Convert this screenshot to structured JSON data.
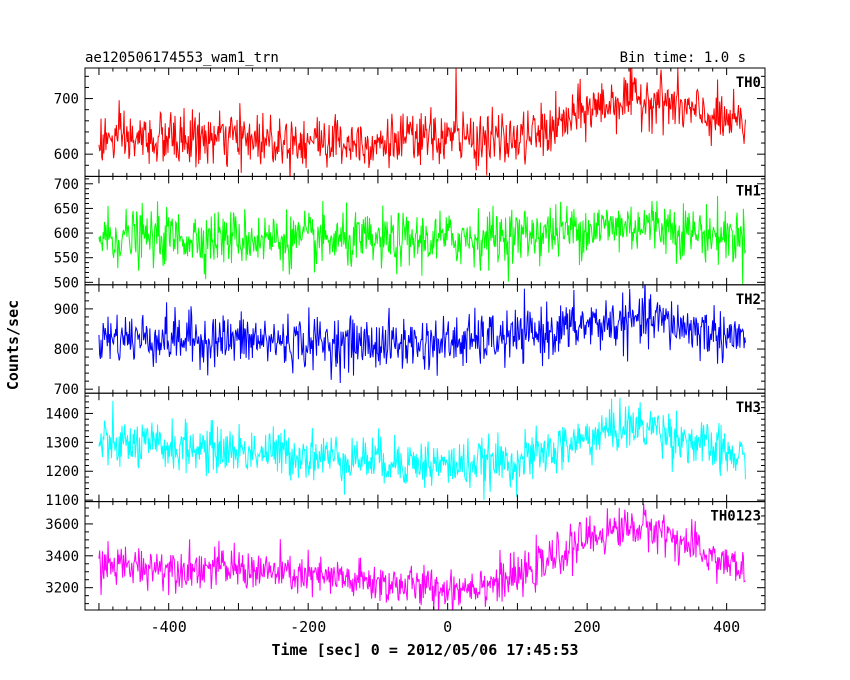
{
  "header": {
    "title": "ae120506174553_wam1_trn",
    "bin_time": "Bin time: 1.0 s"
  },
  "chart_data": {
    "type": "line",
    "title": "ae120506174553_wam1_trn",
    "subtitle": "Bin time: 1.0 s",
    "xlabel": "Time [sec] 0 = 2012/05/06 17:45:53",
    "ylabel": "Counts/sec",
    "xlim": [
      -520,
      455
    ],
    "x_ticks": [
      -400,
      -200,
      0,
      200,
      400
    ],
    "x_range": [
      -500,
      427
    ],
    "bin_seconds": 1.0,
    "grid": false,
    "panels": [
      {
        "name": "TH0",
        "color": "#ff0000",
        "ylim": [
          560,
          755
        ],
        "y_ticks": [
          600,
          700
        ],
        "profile": [
          [
            -500,
            625
          ],
          [
            -300,
            628
          ],
          [
            -100,
            622
          ],
          [
            0,
            630
          ],
          [
            100,
            625
          ],
          [
            150,
            645
          ],
          [
            200,
            680
          ],
          [
            250,
            698
          ],
          [
            300,
            700
          ],
          [
            350,
            675
          ],
          [
            427,
            650
          ]
        ],
        "noise_sd": 24,
        "spike": {
          "x": 12,
          "value": 760
        }
      },
      {
        "name": "TH1",
        "color": "#00ff00",
        "ylim": [
          495,
          715
        ],
        "y_ticks": [
          500,
          550,
          600,
          650,
          700
        ],
        "profile": [
          [
            -500,
            592
          ],
          [
            -300,
            590
          ],
          [
            -100,
            582
          ],
          [
            0,
            588
          ],
          [
            100,
            595
          ],
          [
            200,
            610
          ],
          [
            300,
            618
          ],
          [
            350,
            602
          ],
          [
            427,
            590
          ]
        ],
        "noise_sd": 28
      },
      {
        "name": "TH2",
        "color": "#0000ff",
        "ylim": [
          690,
          960
        ],
        "y_ticks": [
          700,
          800,
          900
        ],
        "profile": [
          [
            -500,
            830
          ],
          [
            -300,
            822
          ],
          [
            -100,
            812
          ],
          [
            0,
            815
          ],
          [
            100,
            830
          ],
          [
            200,
            860
          ],
          [
            300,
            872
          ],
          [
            350,
            850
          ],
          [
            427,
            825
          ]
        ],
        "noise_sd": 33
      },
      {
        "name": "TH3",
        "color": "#00ffff",
        "ylim": [
          1095,
          1470
        ],
        "y_ticks": [
          1100,
          1200,
          1300,
          1400
        ],
        "profile": [
          [
            -500,
            1295
          ],
          [
            -300,
            1272
          ],
          [
            -100,
            1240
          ],
          [
            0,
            1220
          ],
          [
            100,
            1235
          ],
          [
            150,
            1270
          ],
          [
            200,
            1315
          ],
          [
            250,
            1355
          ],
          [
            300,
            1350
          ],
          [
            350,
            1300
          ],
          [
            427,
            1240
          ]
        ],
        "noise_sd": 42
      },
      {
        "name": "TH0123",
        "color": "#ff00ff",
        "ylim": [
          3060,
          3740
        ],
        "y_ticks": [
          3200,
          3400,
          3600
        ],
        "profile": [
          [
            -500,
            3340
          ],
          [
            -300,
            3320
          ],
          [
            -200,
            3270
          ],
          [
            -100,
            3230
          ],
          [
            0,
            3190
          ],
          [
            100,
            3260
          ],
          [
            150,
            3380
          ],
          [
            200,
            3510
          ],
          [
            250,
            3580
          ],
          [
            300,
            3570
          ],
          [
            350,
            3450
          ],
          [
            427,
            3300
          ]
        ],
        "noise_sd": 65
      }
    ]
  }
}
